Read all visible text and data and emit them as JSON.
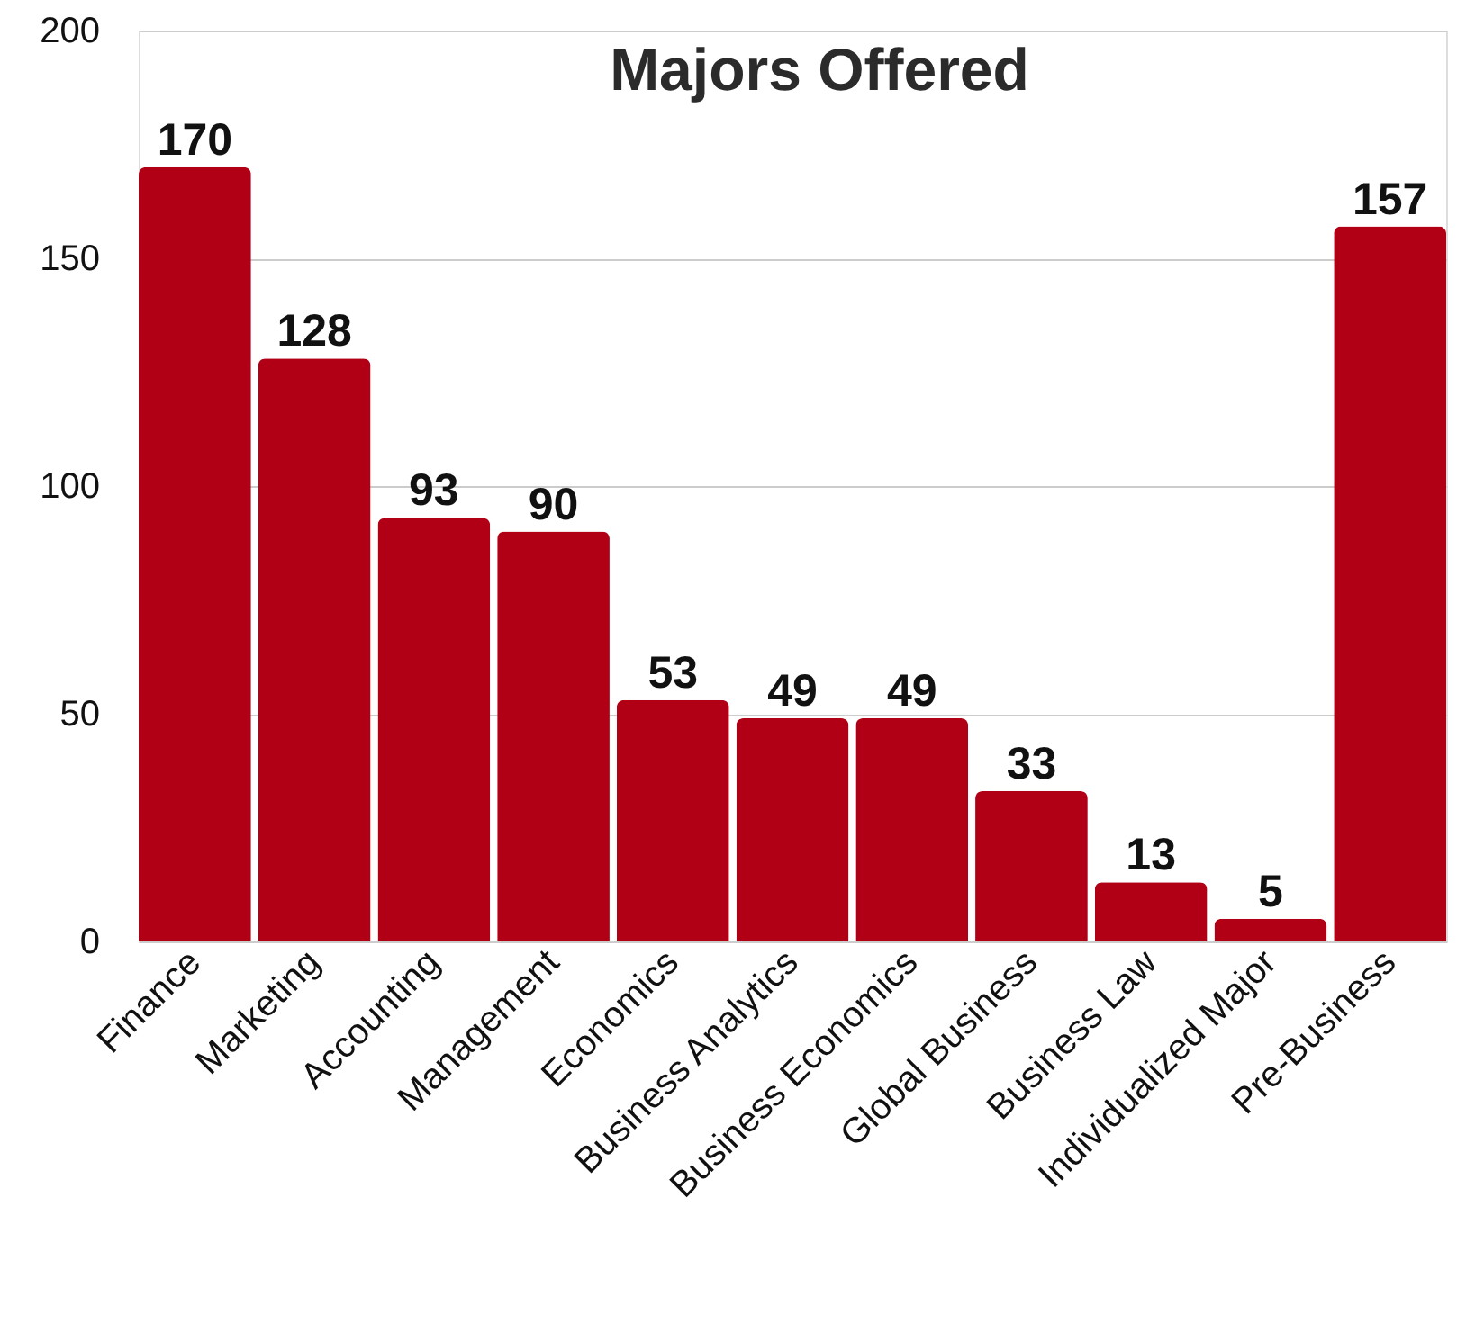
{
  "chart_data": {
    "type": "bar",
    "title": "Majors Offered",
    "categories": [
      "Finance",
      "Marketing",
      "Accounting",
      "Management",
      "Economics",
      "Business Analytics",
      "Business Economics",
      "Global Business",
      "Business Law",
      "Individualized Major",
      "Pre-Business"
    ],
    "values": [
      170,
      128,
      93,
      90,
      53,
      49,
      49,
      33,
      13,
      5,
      157
    ],
    "color": "#b10015",
    "ylim": [
      0,
      200
    ],
    "yticks": [
      0,
      50,
      100,
      150,
      200
    ],
    "grid": "y",
    "data_labels": true
  }
}
